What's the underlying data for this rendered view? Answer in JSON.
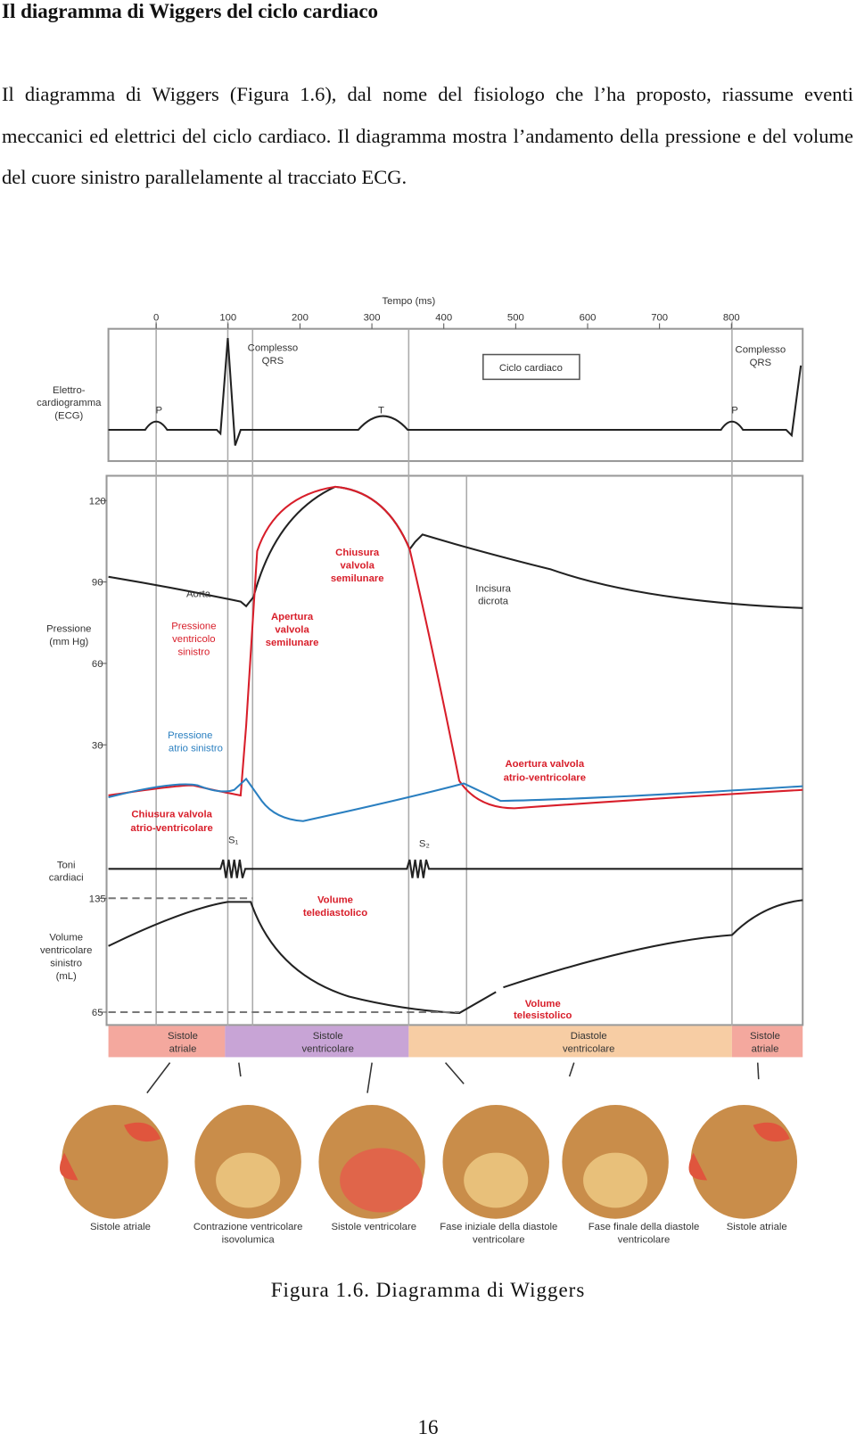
{
  "heading": "Il diagramma di Wiggers del ciclo cardiaco",
  "paragraph": "Il diagramma di Wiggers (Figura 1.6), dal nome del fisiologo che l’ha proposto, riassume eventi meccanici ed elettrici del ciclo cardiaco. Il diagramma mostra l’andamento della pressione e del volume del cuore sinistro parallelamente al tracciato ECG.",
  "figure": {
    "time_axis": {
      "label": "Tempo (ms)",
      "ticks": [
        0,
        100,
        200,
        300,
        400,
        500,
        600,
        700,
        800
      ]
    },
    "ecg": {
      "label": [
        "Elettro-",
        "cardiogramma",
        "(ECG)"
      ],
      "qrs_1": [
        "Complesso",
        "QRS"
      ],
      "qrs_2": [
        "Complesso",
        "QRS"
      ],
      "cycle": "Ciclo cardiaco",
      "p_1": "P",
      "t": "T",
      "p_2": "P"
    },
    "pressure": {
      "label": [
        "Pressione",
        "(mm Hg)"
      ],
      "ticks": [
        30,
        60,
        90,
        120
      ],
      "aorta": "Aorta",
      "ventricle": [
        "Pressione",
        "ventricolo",
        "sinistro"
      ],
      "atrium": [
        "Pressione",
        "atrio sinistro"
      ],
      "semilunar_open": [
        "Apertura",
        "valvola",
        "semilunare"
      ],
      "semilunar_close": [
        "Chiusura",
        "valvola",
        "semilunare"
      ],
      "dicrotic": [
        "Incisura",
        "dicrota"
      ],
      "av_open": [
        "Aoertura valvola",
        "atrio-ventricolare"
      ],
      "av_close": [
        "Chiusura valvola",
        "atrio-ventricolare"
      ]
    },
    "sounds": {
      "label": [
        "Toni",
        "cardiaci"
      ],
      "s1": "S₁",
      "s2": "S₂"
    },
    "volume": {
      "label": [
        "Volume",
        "ventricolare",
        "sinistro",
        "(mL)"
      ],
      "ticks": [
        65,
        135
      ],
      "edv": [
        "Volume",
        "telediastolico"
      ],
      "esv": [
        "Volume",
        "telesistolico"
      ]
    },
    "phases": [
      [
        "Sistole",
        "atriale"
      ],
      [
        "Sistole",
        "ventricolare"
      ],
      [
        "Diastole",
        "ventricolare"
      ],
      [
        "Sistole",
        "atriale"
      ]
    ],
    "hearts": [
      [
        "Sistole atriale"
      ],
      [
        "Contrazione ventricolare",
        "isovolumica"
      ],
      [
        "Sistole ventricolare"
      ],
      [
        "Fase iniziale della diastole",
        "ventricolare"
      ],
      [
        "Fase finale della diastole",
        "ventricolare"
      ],
      [
        "Sistole atriale"
      ]
    ]
  },
  "caption": "Figura 1.6. Diagramma di Wiggers",
  "page_number": "16"
}
